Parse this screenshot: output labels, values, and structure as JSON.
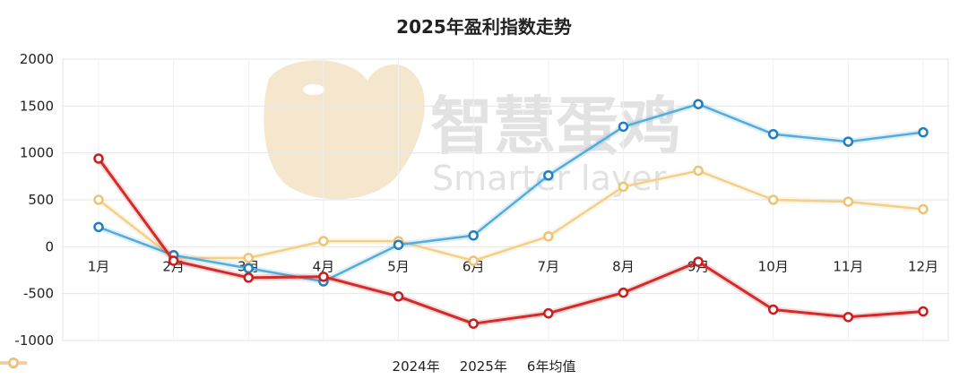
{
  "chart_data": {
    "type": "line",
    "title": "2025年盈利指数走势",
    "categories": [
      "1月",
      "2月",
      "3月",
      "4月",
      "5月",
      "6月",
      "7月",
      "8月",
      "9月",
      "10月",
      "11月",
      "12月"
    ],
    "ylim": [
      -1000,
      2000
    ],
    "yticks": [
      -1000,
      -500,
      0,
      500,
      1000,
      1500,
      2000
    ],
    "ytick_labels": [
      "-1000",
      "-500",
      "0",
      "500",
      "1000",
      "1500",
      "2000"
    ],
    "grid": true,
    "legend_position": "bottom",
    "series": [
      {
        "name": "2024年",
        "color": "#55acdb",
        "marker": "#1f7fbf",
        "values": [
          210,
          -90,
          -230,
          -370,
          20,
          120,
          760,
          1280,
          1520,
          1200,
          1120,
          1220
        ]
      },
      {
        "name": "2025年",
        "color": "#d42a2a",
        "marker": "#c81e1e",
        "values": [
          940,
          -150,
          -330,
          -320,
          -530,
          -820,
          -710,
          -490,
          -160,
          -670,
          -750,
          -690
        ]
      },
      {
        "name": "6年均值",
        "color": "#f3d08a",
        "marker": "#eec373",
        "values": [
          500,
          -120,
          -120,
          60,
          60,
          -150,
          110,
          640,
          810,
          500,
          480,
          400
        ]
      }
    ]
  },
  "watermark": {
    "text_cn": "智慧蛋鸡",
    "text_en": "Smarter layer",
    "color": "#d9d9d9",
    "logo_color": "#f2dfbd"
  }
}
